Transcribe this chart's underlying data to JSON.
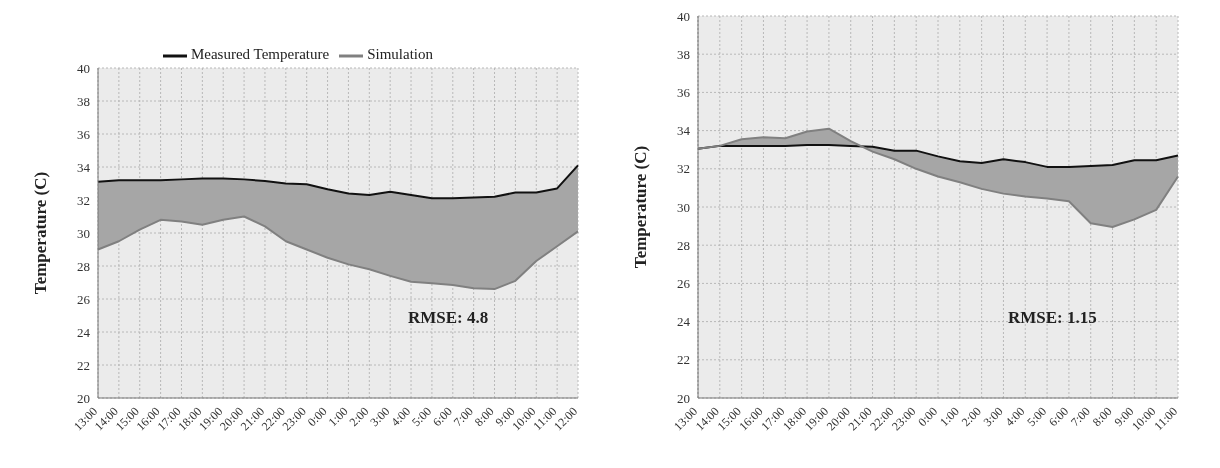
{
  "chart_data": [
    {
      "type": "line",
      "ylabel": "Temperature  (C)",
      "categories": [
        "13:00",
        "14:00",
        "15:00",
        "16:00",
        "17:00",
        "18:00",
        "19:00",
        "20:00",
        "21:00",
        "22:00",
        "23:00",
        "0:00",
        "1:00",
        "2:00",
        "3:00",
        "4:00",
        "5:00",
        "6:00",
        "7:00",
        "8:00",
        "9:00",
        "10:00",
        "11:00",
        "12:00"
      ],
      "series": [
        {
          "name": "Measured Temperature",
          "color": "#111111",
          "values": [
            33.1,
            33.2,
            33.2,
            33.2,
            33.25,
            33.3,
            33.3,
            33.25,
            33.15,
            33.0,
            32.95,
            32.65,
            32.4,
            32.3,
            32.5,
            32.3,
            32.1,
            32.1,
            32.15,
            32.2,
            32.45,
            32.45,
            32.7,
            34.1
          ],
          "lower": [
            29.0,
            29.5,
            30.2,
            30.8,
            30.7,
            30.5,
            30.8,
            31.0,
            30.4,
            29.5,
            29.0,
            28.5,
            28.1,
            27.8,
            27.4,
            27.05,
            26.95,
            26.85,
            26.65,
            26.6,
            27.1,
            28.3,
            29.2,
            30.1
          ],
          "upper": [
            33.1,
            33.2,
            33.2,
            33.2,
            33.25,
            33.3,
            33.3,
            33.25,
            33.15,
            33.0,
            32.95,
            32.65,
            32.4,
            32.3,
            32.5,
            32.3,
            32.1,
            32.1,
            32.15,
            32.2,
            32.45,
            32.45,
            32.7,
            34.1
          ]
        },
        {
          "name": "Simulation",
          "color": "#808080",
          "values": [
            29.0,
            29.5,
            30.2,
            30.8,
            30.7,
            30.5,
            30.8,
            31.0,
            30.4,
            29.5,
            29.0,
            28.5,
            28.1,
            27.8,
            27.4,
            27.05,
            26.95,
            26.85,
            26.65,
            26.6,
            27.1,
            28.3,
            29.2,
            30.1
          ]
        }
      ],
      "ylim": [
        20,
        40
      ],
      "yticks": [
        20,
        22,
        24,
        26,
        28,
        30,
        32,
        34,
        36,
        38,
        40
      ],
      "grid": true,
      "legend": "top",
      "annotations": [
        "RMSE: 4.8"
      ]
    },
    {
      "type": "line",
      "ylabel": "Temperature  (C)",
      "categories": [
        "13:00",
        "14:00",
        "15:00",
        "16:00",
        "17:00",
        "18:00",
        "19:00",
        "20:00",
        "21:00",
        "22:00",
        "23:00",
        "0:00",
        "1:00",
        "2:00",
        "3:00",
        "4:00",
        "5:00",
        "6:00",
        "7:00",
        "8:00",
        "9:00",
        "10:00",
        "11:00"
      ],
      "series": [
        {
          "color": "#111111",
          "values": [
            33.05,
            33.2,
            33.2,
            33.2,
            33.2,
            33.25,
            33.25,
            33.2,
            33.15,
            32.95,
            32.95,
            32.65,
            32.4,
            32.3,
            32.5,
            32.35,
            32.1,
            32.1,
            32.15,
            32.2,
            32.45,
            32.45,
            32.7
          ],
          "lower": [
            33.05,
            33.2,
            33.55,
            33.65,
            33.6,
            33.95,
            34.1,
            33.45,
            32.9,
            32.5,
            32.0,
            31.6,
            31.3,
            30.95,
            30.7,
            30.55,
            30.45,
            30.3,
            29.15,
            28.95,
            29.35,
            29.85,
            31.6
          ],
          "upper": [
            33.05,
            33.2,
            33.2,
            33.2,
            33.2,
            33.25,
            33.25,
            33.2,
            33.15,
            32.95,
            32.95,
            32.65,
            32.4,
            32.3,
            32.5,
            32.35,
            32.1,
            32.1,
            32.15,
            32.2,
            32.45,
            32.45,
            32.7
          ]
        },
        {
          "color": "#808080",
          "values": [
            33.05,
            33.2,
            33.55,
            33.65,
            33.6,
            33.95,
            34.1,
            33.45,
            32.9,
            32.5,
            32.0,
            31.6,
            31.3,
            30.95,
            30.7,
            30.55,
            30.45,
            30.3,
            29.15,
            28.95,
            29.35,
            29.85,
            31.6
          ]
        }
      ],
      "ylim": [
        20,
        40
      ],
      "yticks": [
        20,
        22,
        24,
        26,
        28,
        30,
        32,
        34,
        36,
        38,
        40
      ],
      "grid": true,
      "annotations": [
        "RMSE: 1.15"
      ]
    }
  ]
}
